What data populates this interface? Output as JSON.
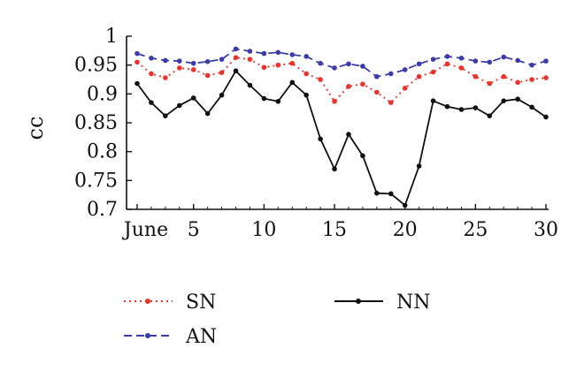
{
  "chart_data": {
    "type": "line",
    "title": "",
    "xlabel": "",
    "ylabel": "cc",
    "ylim": [
      0.7,
      1.0
    ],
    "xlim": [
      1,
      30
    ],
    "yticks": [
      {
        "value": 0.7,
        "label": "0.7"
      },
      {
        "value": 0.75,
        "label": "0.75"
      },
      {
        "value": 0.8,
        "label": "0.8"
      },
      {
        "value": 0.85,
        "label": "0.85"
      },
      {
        "value": 0.9,
        "label": "0.9"
      },
      {
        "value": 0.95,
        "label": "0.95"
      },
      {
        "value": 1.0,
        "label": "1"
      }
    ],
    "xticks": [
      {
        "value": 1,
        "label": "June"
      },
      {
        "value": 5,
        "label": "5"
      },
      {
        "value": 10,
        "label": "10"
      },
      {
        "value": 15,
        "label": "15"
      },
      {
        "value": 20,
        "label": "20"
      },
      {
        "value": 25,
        "label": "25"
      },
      {
        "value": 30,
        "label": "30"
      }
    ],
    "grid": false,
    "legend_position": "bottom",
    "x": [
      1,
      2,
      3,
      4,
      5,
      6,
      7,
      8,
      9,
      10,
      11,
      12,
      13,
      14,
      15,
      16,
      17,
      18,
      19,
      20,
      21,
      22,
      23,
      24,
      25,
      26,
      27,
      28,
      29,
      30
    ],
    "series": [
      {
        "name": "SN",
        "color": "#e8322a",
        "dash": "dotted",
        "values": [
          0.955,
          0.935,
          0.928,
          0.945,
          0.942,
          0.932,
          0.937,
          0.963,
          0.96,
          0.946,
          0.95,
          0.953,
          0.935,
          0.925,
          0.887,
          0.913,
          0.917,
          0.903,
          0.885,
          0.91,
          0.93,
          0.938,
          0.952,
          0.945,
          0.93,
          0.918,
          0.93,
          0.92,
          0.925,
          0.928
        ]
      },
      {
        "name": "AN",
        "color": "#3c3ca8",
        "dash": "dashed",
        "values": [
          0.97,
          0.962,
          0.958,
          0.957,
          0.953,
          0.956,
          0.96,
          0.978,
          0.974,
          0.97,
          0.972,
          0.968,
          0.965,
          0.953,
          0.945,
          0.952,
          0.948,
          0.93,
          0.935,
          0.942,
          0.952,
          0.96,
          0.965,
          0.962,
          0.957,
          0.955,
          0.964,
          0.958,
          0.95,
          0.957
        ]
      },
      {
        "name": "NN",
        "color": "#111111",
        "dash": "solid",
        "values": [
          0.918,
          0.885,
          0.862,
          0.88,
          0.893,
          0.866,
          0.898,
          0.94,
          0.915,
          0.892,
          0.887,
          0.92,
          0.898,
          0.822,
          0.77,
          0.83,
          0.793,
          0.728,
          0.727,
          0.707,
          0.775,
          0.888,
          0.878,
          0.873,
          0.876,
          0.862,
          0.888,
          0.891,
          0.877,
          0.86
        ]
      }
    ]
  }
}
